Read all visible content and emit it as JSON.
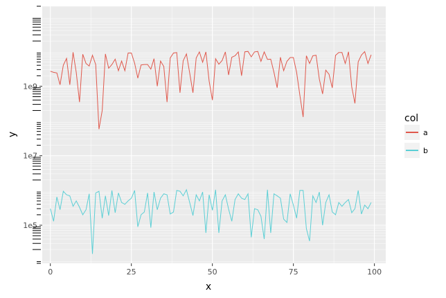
{
  "chart_data": {
    "type": "line",
    "xlabel": "x",
    "ylabel": "y",
    "xlim": [
      -2.5,
      103.5
    ],
    "ylim": [
      8000,
      200000000000
    ],
    "y_scale": "log10",
    "x_ticks": [
      0,
      25,
      50,
      75,
      100
    ],
    "x_tick_labels": [
      "0",
      "25",
      "50",
      "75",
      "100"
    ],
    "y_ticks": [
      100000,
      10000000,
      1000000000
    ],
    "y_tick_labels": [
      "1e5",
      "1e7",
      "1e9"
    ],
    "grid": true,
    "legend": {
      "title": "col",
      "position": "right"
    },
    "series": [
      {
        "name": "a",
        "color": "#E0584C",
        "x": [
          0,
          1,
          2,
          3,
          4,
          5,
          6,
          7,
          8,
          9,
          10,
          11,
          12,
          13,
          14,
          15,
          16,
          17,
          18,
          19,
          20,
          21,
          22,
          23,
          24,
          25,
          26,
          27,
          28,
          29,
          30,
          31,
          32,
          33,
          34,
          35,
          36,
          37,
          38,
          39,
          40,
          41,
          42,
          43,
          44,
          45,
          46,
          47,
          48,
          49,
          50,
          51,
          52,
          53,
          54,
          55,
          56,
          57,
          58,
          59,
          60,
          61,
          62,
          63,
          64,
          65,
          66,
          67,
          68,
          69,
          70,
          71,
          72,
          73,
          74,
          75,
          76,
          77,
          78,
          79,
          80,
          81,
          82,
          83,
          84,
          85,
          86,
          87,
          88,
          89,
          90,
          91,
          92,
          93,
          94,
          95,
          96,
          97,
          98,
          99
        ],
        "values": [
          2700000000,
          2500000000,
          2400000000,
          1100000000,
          4000000000,
          6300000000,
          1100000000,
          9500000000,
          2500000000,
          350000000,
          8300000000,
          4500000000,
          3800000000,
          7800000000,
          4200000000,
          58000000,
          200000000,
          8500000000,
          3300000000,
          4200000000,
          6000000000,
          2800000000,
          5300000000,
          2800000000,
          9000000000,
          9000000000,
          4600000000,
          1700000000,
          4100000000,
          4200000000,
          4200000000,
          3100000000,
          6200000000,
          1000000000,
          5300000000,
          3700000000,
          350000000,
          6500000000,
          9000000000,
          9300000000,
          650000000,
          5400000000,
          8500000000,
          2400000000,
          650000000,
          6500000000,
          9700000000,
          4900000000,
          9700000000,
          1400000000,
          400000000,
          6200000000,
          4300000000,
          5500000000,
          9700000000,
          2100000000,
          6800000000,
          7500000000,
          9700000000,
          2000000000,
          9800000000,
          10000000000,
          7000000000,
          9700000000,
          10000000000,
          5200000000,
          9700000000,
          5900000000,
          6000000000,
          2500000000,
          900000000,
          6800000000,
          2800000000,
          5200000000,
          6700000000,
          6700000000,
          2500000000,
          550000000,
          130000000,
          7500000000,
          4500000000,
          7500000000,
          7800000000,
          1600000000,
          600000000,
          2900000000,
          2200000000,
          900000000,
          7700000000,
          9300000000,
          9300000000,
          4500000000,
          9800000000,
          950000000,
          320000000,
          5000000000,
          7900000000,
          9900000000,
          4500000000,
          8000000000
        ]
      },
      {
        "name": "b",
        "color": "#5BCFD5",
        "x": [
          0,
          1,
          2,
          3,
          4,
          5,
          6,
          7,
          8,
          9,
          10,
          11,
          12,
          13,
          14,
          15,
          16,
          17,
          18,
          19,
          20,
          21,
          22,
          23,
          24,
          25,
          26,
          27,
          28,
          29,
          30,
          31,
          32,
          33,
          34,
          35,
          36,
          37,
          38,
          39,
          40,
          41,
          42,
          43,
          44,
          45,
          46,
          47,
          48,
          49,
          50,
          51,
          52,
          53,
          54,
          55,
          56,
          57,
          58,
          59,
          60,
          61,
          62,
          63,
          64,
          65,
          66,
          67,
          68,
          69,
          70,
          71,
          72,
          73,
          74,
          75,
          76,
          77,
          78,
          79,
          80,
          81,
          82,
          83,
          84,
          85,
          86,
          87,
          88,
          89,
          90,
          91,
          92,
          93,
          94,
          95,
          96,
          97,
          98,
          99
        ],
        "values": [
          300000,
          130000,
          650000,
          280000,
          950000,
          750000,
          700000,
          350000,
          500000,
          330000,
          200000,
          280000,
          800000,
          15000,
          850000,
          950000,
          160000,
          700000,
          190000,
          1000000,
          230000,
          850000,
          450000,
          400000,
          500000,
          600000,
          1000000,
          90000,
          200000,
          240000,
          850000,
          85000,
          900000,
          280000,
          600000,
          800000,
          750000,
          210000,
          240000,
          1000000,
          950000,
          700000,
          1050000,
          450000,
          190000,
          750000,
          500000,
          900000,
          60000,
          750000,
          270000,
          1050000,
          60000,
          500000,
          750000,
          290000,
          130000,
          550000,
          800000,
          600000,
          550000,
          800000,
          45000,
          300000,
          280000,
          180000,
          40000,
          1050000,
          60000,
          800000,
          700000,
          600000,
          150000,
          120000,
          800000,
          380000,
          160000,
          1000000,
          1000000,
          80000,
          35000,
          700000,
          450000,
          900000,
          100000,
          450000,
          750000,
          240000,
          200000,
          450000,
          350000,
          450000,
          550000,
          230000,
          300000,
          1000000,
          210000,
          380000,
          300000,
          450000
        ]
      }
    ]
  }
}
